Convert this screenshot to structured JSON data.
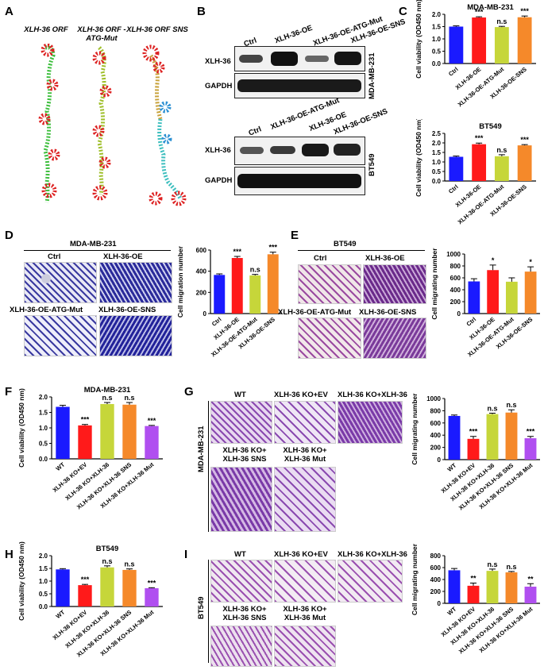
{
  "panels": {
    "A": {
      "letter": "A",
      "titles": [
        "XLH-36 ORF",
        "XLH-36 ORF -ATG-Mut",
        "XLH-36 ORF SNS"
      ]
    },
    "B": {
      "letter": "B",
      "top": {
        "lanes": [
          "Ctrl",
          "XLH-36-OE",
          "XLH-36-OE-ATG-Mut",
          "XLH-36-OE-SNS"
        ],
        "rows": [
          "XLH-36",
          "GAPDH"
        ],
        "cell": "MDA-MB-231"
      },
      "bottom": {
        "lanes": [
          "Ctrl",
          "XLH-36-OE-ATG-Mut",
          "XLH-36-OE",
          "XLH-36-OE-SNS"
        ],
        "rows": [
          "XLH-36",
          "GAPDH"
        ],
        "cell": "BT549"
      }
    },
    "C": {
      "letter": "C"
    },
    "D": {
      "letter": "D",
      "header": "MDA-MB-231",
      "images": [
        "Ctrl",
        "XLH-36-OE",
        "XLH-36-OE-ATG-Mut",
        "XLH-36-OE-SNS"
      ]
    },
    "E": {
      "letter": "E",
      "header": "BT549",
      "images": [
        "Ctrl",
        "XLH-36-OE",
        "XLH-36-OE-ATG-Mut",
        "XLH-36-OE-SNS"
      ]
    },
    "F": {
      "letter": "F"
    },
    "G": {
      "letter": "G",
      "side": "MDA-MB-231",
      "images": [
        "WT",
        "XLH-36 KO+EV",
        "XLH-36 KO+XLH-36",
        "XLH-36 KO+ XLH-36 SNS",
        "XLH-36 KO+ XLH-36 Mut"
      ]
    },
    "H": {
      "letter": "H"
    },
    "I": {
      "letter": "I",
      "side": "BT549",
      "images": [
        "WT",
        "XLH-36 KO+EV",
        "XLH-36 KO+XLH-36",
        "XLH-36 KO+ XLH-36 SNS",
        "XLH-36 KO+ XLH-36 Mut"
      ]
    }
  },
  "colors": {
    "blue": "#1a1aff",
    "red": "#ff1a1a",
    "olive": "#c6d63a",
    "orange": "#f5892a",
    "purple": "#b04ff0"
  },
  "chart_data": [
    {
      "id": "C1",
      "type": "bar",
      "title": "MDA-MB-231",
      "ylabel": "Cell viability (OD450 nm)",
      "categories": [
        "Ctrl",
        "XLH-36-OE",
        "XLH-36-OE-ATG-Mut",
        "XLH-36-OE-SNS"
      ],
      "values": [
        1.5,
        1.87,
        1.48,
        1.88
      ],
      "errors": [
        0.03,
        0.03,
        0.03,
        0.05
      ],
      "annotations": [
        "",
        "***",
        "n.s",
        "***"
      ],
      "ylim": [
        0,
        2.0
      ],
      "ticks": [
        0.0,
        0.5,
        1.0,
        1.5,
        2.0
      ],
      "colors": [
        "blue",
        "red",
        "olive",
        "orange"
      ]
    },
    {
      "id": "C2",
      "type": "bar",
      "title": "BT549",
      "ylabel": "Cell viability (OD450 nm)",
      "categories": [
        "Ctrl",
        "XLH-36-OE",
        "XLH-36-OE-ATG-Mut",
        "XLH-36-OE-SNS"
      ],
      "values": [
        1.27,
        1.93,
        1.3,
        1.87
      ],
      "errors": [
        0.04,
        0.06,
        0.08,
        0.04
      ],
      "annotations": [
        "",
        "***",
        "n.s",
        "***"
      ],
      "ylim": [
        0,
        2.5
      ],
      "ticks": [
        0.0,
        0.5,
        1.0,
        1.5,
        2.0,
        2.5
      ],
      "colors": [
        "blue",
        "red",
        "olive",
        "orange"
      ]
    },
    {
      "id": "D",
      "type": "bar",
      "title": "",
      "ylabel": "Cell migration number",
      "categories": [
        "Ctrl",
        "XLH-36-OE",
        "XLH-36-OE-ATG-Mut",
        "XLH-36-OE-SNS"
      ],
      "values": [
        365,
        525,
        360,
        560
      ],
      "errors": [
        10,
        15,
        10,
        20
      ],
      "annotations": [
        "",
        "***",
        "n.s",
        "***"
      ],
      "ylim": [
        0,
        600
      ],
      "ticks": [
        0,
        200,
        400,
        600
      ],
      "colors": [
        "blue",
        "red",
        "olive",
        "orange"
      ]
    },
    {
      "id": "E",
      "type": "bar",
      "title": "",
      "ylabel": "Cell migrating number",
      "categories": [
        "Ctrl",
        "XLH-36-OE",
        "XLH-36-OE-ATG-Mut",
        "XLH-36-OE-SNS"
      ],
      "values": [
        540,
        730,
        535,
        705
      ],
      "errors": [
        45,
        85,
        65,
        80
      ],
      "annotations": [
        "",
        "*",
        "",
        "*"
      ],
      "ylim": [
        0,
        1000
      ],
      "ticks": [
        0,
        200,
        400,
        600,
        800,
        1000
      ],
      "colors": [
        "blue",
        "red",
        "olive",
        "orange"
      ]
    },
    {
      "id": "F",
      "type": "bar",
      "title": "MDA-MB-231",
      "ylabel": "Cell viability (OD450 nm)",
      "categories": [
        "WT",
        "XLH-36 KO+EV",
        "XLH-36 KO+XLH-36",
        "XLH-36 KO+XLH-36 SNS",
        "XLH-36 KO+XLH-36 Mut"
      ],
      "values": [
        1.68,
        1.08,
        1.77,
        1.75,
        1.06
      ],
      "errors": [
        0.05,
        0.03,
        0.05,
        0.07,
        0.02
      ],
      "annotations": [
        "",
        "***",
        "n.s",
        "n.s",
        "***"
      ],
      "ylim": [
        0,
        2.0
      ],
      "ticks": [
        0.0,
        0.5,
        1.0,
        1.5,
        2.0
      ],
      "colors": [
        "blue",
        "red",
        "olive",
        "orange",
        "purple"
      ]
    },
    {
      "id": "G",
      "type": "bar",
      "title": "",
      "ylabel": "Cell migrating number",
      "categories": [
        "WT",
        "XLH-36 KO+EV",
        "XLH-36 KO+XLH-36",
        "XLH-36 KO+XLH-36 SNS",
        "XLH-36 KO+XLH-36 Mut"
      ],
      "values": [
        715,
        340,
        745,
        770,
        350
      ],
      "errors": [
        15,
        40,
        15,
        45,
        30
      ],
      "annotations": [
        "",
        "***",
        "n.s",
        "n.s",
        "***"
      ],
      "ylim": [
        0,
        1000
      ],
      "ticks": [
        0,
        200,
        400,
        600,
        800,
        1000
      ],
      "colors": [
        "blue",
        "red",
        "olive",
        "orange",
        "purple"
      ]
    },
    {
      "id": "H",
      "type": "bar",
      "title": "BT549",
      "ylabel": "Cell viability (OD450 nm)",
      "categories": [
        "WT",
        "XLH-36 KO+EV",
        "XLH-36 KO+XLH-36",
        "XLH-36 KO+XLH-36 SNS",
        "XLH-36 KO+XLH-36 Mut"
      ],
      "values": [
        1.46,
        0.84,
        1.54,
        1.44,
        0.72
      ],
      "errors": [
        0.03,
        0.03,
        0.06,
        0.04,
        0.02
      ],
      "annotations": [
        "",
        "***",
        "n.s",
        "n.s",
        "***"
      ],
      "ylim": [
        0,
        2.0
      ],
      "ticks": [
        0.0,
        0.5,
        1.0,
        1.5,
        2.0
      ],
      "colors": [
        "blue",
        "red",
        "olive",
        "orange",
        "purple"
      ]
    },
    {
      "id": "I",
      "type": "bar",
      "title": "",
      "ylabel": "Cell migrating number",
      "categories": [
        "WT",
        "XLH-36 KO+EV",
        "XLH-36 KO+XLH-36",
        "XLH-36 KO+XLH-36 SNS",
        "XLH-36 KO+XLH-36 Mut"
      ],
      "values": [
        555,
        295,
        545,
        520,
        280
      ],
      "errors": [
        30,
        45,
        30,
        15,
        50
      ],
      "annotations": [
        "",
        "**",
        "n.s",
        "n.s",
        "**"
      ],
      "ylim": [
        0,
        800
      ],
      "ticks": [
        0,
        200,
        400,
        600,
        800
      ],
      "colors": [
        "blue",
        "red",
        "olive",
        "orange",
        "purple"
      ]
    }
  ]
}
